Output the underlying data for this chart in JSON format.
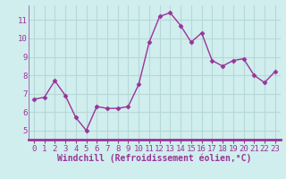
{
  "x": [
    0,
    1,
    2,
    3,
    4,
    5,
    6,
    7,
    8,
    9,
    10,
    11,
    12,
    13,
    14,
    15,
    16,
    17,
    18,
    19,
    20,
    21,
    22,
    23
  ],
  "y": [
    6.7,
    6.8,
    7.7,
    6.9,
    5.7,
    5.0,
    6.3,
    6.2,
    6.2,
    6.3,
    7.5,
    9.8,
    11.2,
    11.4,
    10.7,
    9.8,
    10.3,
    8.8,
    8.5,
    8.8,
    8.9,
    8.0,
    7.6,
    8.2
  ],
  "line_color": "#993399",
  "marker": "D",
  "marker_size": 2.5,
  "bg_color": "#d0eeee",
  "grid_color": "#b8d8d8",
  "xlabel": "Windchill (Refroidissement éolien,°C)",
  "xlabel_color": "#993399",
  "tick_color": "#993399",
  "axis_bar_color": "#993399",
  "ylim": [
    4.5,
    11.8
  ],
  "xlim": [
    -0.5,
    23.5
  ],
  "yticks": [
    5,
    6,
    7,
    8,
    9,
    10,
    11
  ],
  "xticks": [
    0,
    1,
    2,
    3,
    4,
    5,
    6,
    7,
    8,
    9,
    10,
    11,
    12,
    13,
    14,
    15,
    16,
    17,
    18,
    19,
    20,
    21,
    22,
    23
  ],
  "tick_font_size": 6.5,
  "label_font_size": 7.0,
  "linewidth": 1.0
}
